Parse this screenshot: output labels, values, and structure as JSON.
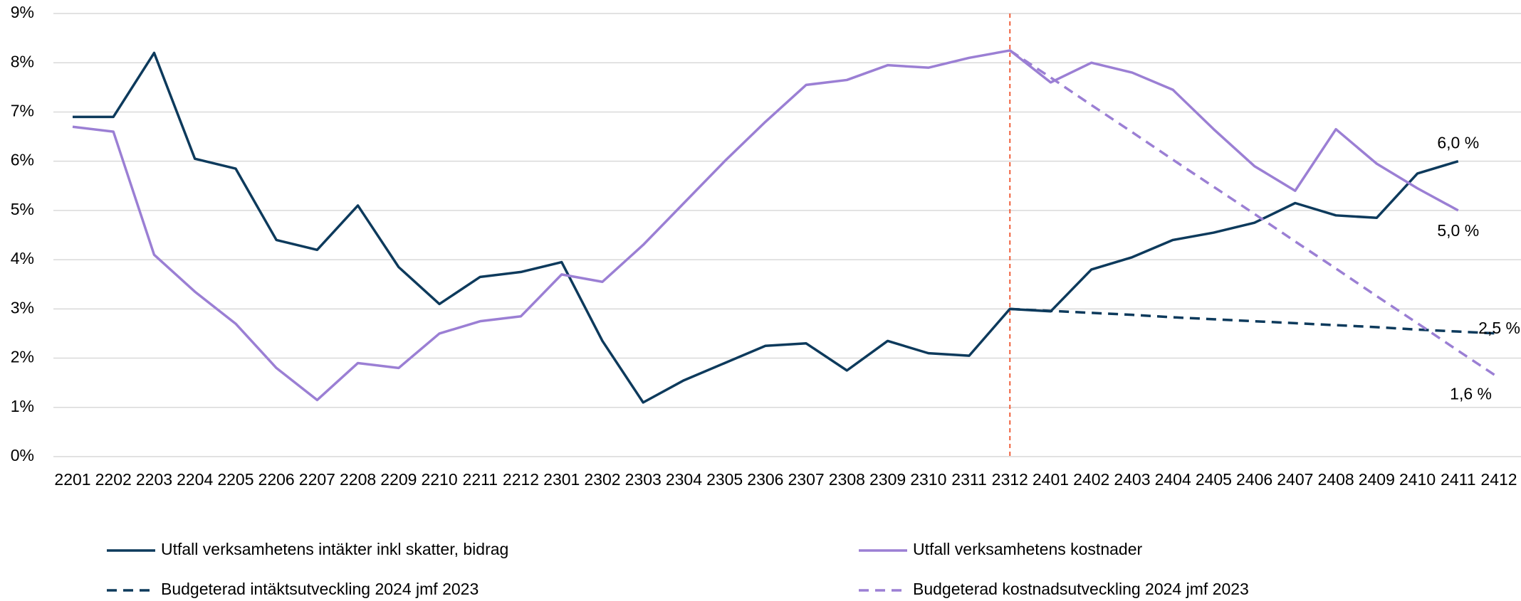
{
  "chart_data": {
    "type": "line",
    "categories": [
      "2201",
      "2202",
      "2203",
      "2204",
      "2205",
      "2206",
      "2207",
      "2208",
      "2209",
      "2210",
      "2211",
      "2212",
      "2301",
      "2302",
      "2303",
      "2304",
      "2305",
      "2306",
      "2307",
      "2308",
      "2309",
      "2310",
      "2311",
      "2312",
      "2401",
      "2402",
      "2403",
      "2404",
      "2405",
      "2406",
      "2407",
      "2408",
      "2409",
      "2410",
      "2411",
      "2412"
    ],
    "series": [
      {
        "name": "Utfall verksamhetens intäkter inkl skatter, bidrag",
        "color": "#0d3a5c",
        "dash": false,
        "values": [
          6.9,
          6.9,
          8.2,
          6.05,
          5.85,
          4.4,
          4.2,
          5.1,
          3.85,
          3.1,
          3.65,
          3.75,
          3.95,
          2.35,
          1.1,
          1.55,
          1.9,
          2.25,
          2.3,
          1.75,
          2.35,
          2.1,
          2.05,
          3.0,
          2.95,
          3.8,
          4.05,
          4.4,
          4.55,
          4.75,
          5.15,
          4.9,
          4.85,
          5.75,
          6.0,
          null
        ],
        "value_labels": [
          null,
          null,
          null,
          null,
          null,
          null,
          null,
          null,
          null,
          null,
          null,
          null,
          null,
          null,
          null,
          null,
          null,
          null,
          null,
          null,
          null,
          null,
          null,
          null,
          null,
          null,
          null,
          null,
          null,
          null,
          null,
          null,
          null,
          null,
          "6,0 %",
          null
        ]
      },
      {
        "name": "Utfall verksamhetens kostnader",
        "color": "#9b7fd4",
        "dash": false,
        "values": [
          6.7,
          6.6,
          4.1,
          3.35,
          2.7,
          1.8,
          1.15,
          1.9,
          1.8,
          2.5,
          2.75,
          2.85,
          3.7,
          3.55,
          4.3,
          5.15,
          6.0,
          6.8,
          7.55,
          7.65,
          7.95,
          7.9,
          8.1,
          8.25,
          7.6,
          8.0,
          7.8,
          7.45,
          6.65,
          5.9,
          5.4,
          6.65,
          5.95,
          5.45,
          5.0,
          null
        ],
        "value_labels": [
          null,
          null,
          null,
          null,
          null,
          null,
          null,
          null,
          null,
          null,
          null,
          null,
          null,
          null,
          null,
          null,
          null,
          null,
          null,
          null,
          null,
          null,
          null,
          null,
          null,
          null,
          null,
          null,
          null,
          null,
          null,
          null,
          null,
          null,
          "5,0 %",
          null
        ]
      },
      {
        "name": "Budgeterad intäktsutveckling 2024 jmf 2023",
        "color": "#0d3a5c",
        "dash": true,
        "values": [
          null,
          null,
          null,
          null,
          null,
          null,
          null,
          null,
          null,
          null,
          null,
          null,
          null,
          null,
          null,
          null,
          null,
          null,
          null,
          null,
          null,
          null,
          null,
          3.0,
          2.96,
          2.92,
          2.88,
          2.83,
          2.79,
          2.75,
          2.71,
          2.67,
          2.63,
          2.58,
          2.54,
          2.5
        ],
        "value_labels": [
          null,
          null,
          null,
          null,
          null,
          null,
          null,
          null,
          null,
          null,
          null,
          null,
          null,
          null,
          null,
          null,
          null,
          null,
          null,
          null,
          null,
          null,
          null,
          null,
          null,
          null,
          null,
          null,
          null,
          null,
          null,
          null,
          null,
          null,
          null,
          "2,5 %"
        ]
      },
      {
        "name": "Budgeterad kostnadsutveckling 2024 jmf 2023",
        "color": "#9b7fd4",
        "dash": true,
        "values": [
          null,
          null,
          null,
          null,
          null,
          null,
          null,
          null,
          null,
          null,
          null,
          null,
          null,
          null,
          null,
          null,
          null,
          null,
          null,
          null,
          null,
          null,
          null,
          8.25,
          7.7,
          7.14,
          6.59,
          6.03,
          5.48,
          4.93,
          4.37,
          3.82,
          3.26,
          2.71,
          2.15,
          1.6
        ],
        "value_labels": [
          null,
          null,
          null,
          null,
          null,
          null,
          null,
          null,
          null,
          null,
          null,
          null,
          null,
          null,
          null,
          null,
          null,
          null,
          null,
          null,
          null,
          null,
          null,
          null,
          null,
          null,
          null,
          null,
          null,
          null,
          null,
          null,
          null,
          null,
          null,
          "1,6 %"
        ]
      }
    ],
    "ylim": [
      0,
      9
    ],
    "yticks": [
      {
        "value": 0,
        "label": "0%"
      },
      {
        "value": 1,
        "label": "1%"
      },
      {
        "value": 2,
        "label": "2%"
      },
      {
        "value": 3,
        "label": "3%"
      },
      {
        "value": 4,
        "label": "4%"
      },
      {
        "value": 5,
        "label": "5%"
      },
      {
        "value": 6,
        "label": "6%"
      },
      {
        "value": 7,
        "label": "7%"
      },
      {
        "value": 8,
        "label": "8%"
      },
      {
        "value": 9,
        "label": "9%"
      }
    ],
    "grid": true,
    "vline": "2312",
    "vline_color": "#f0603c",
    "legend": "bottom"
  }
}
